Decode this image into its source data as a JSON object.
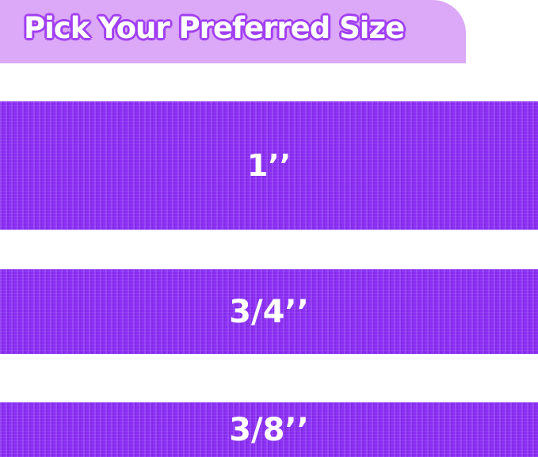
{
  "banner": {
    "title": "Pick Your Preferred Size"
  },
  "straps": [
    {
      "label": "1’’"
    },
    {
      "label": "3/4’’"
    },
    {
      "label": "3/8’’"
    }
  ],
  "colors": {
    "banner": "#dca8f8",
    "title_outline": "#a13ff2",
    "strap": "#8b2ef5",
    "label": "#ffffff"
  }
}
